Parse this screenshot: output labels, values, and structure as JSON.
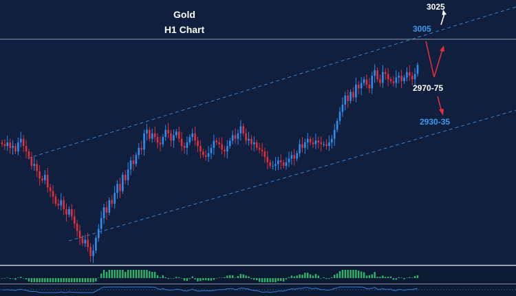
{
  "chart_data": {
    "type": "candlestick",
    "title": "Gold",
    "subtitle": "H1 Chart",
    "colors": {
      "background": "#0f1f3d",
      "bull": "#2f8df0",
      "bear": "#e0303c",
      "channel": "#3c8fe0",
      "hline": "#b8c2d0",
      "title_text": "#ffffff",
      "target_blue": "#3c9cf0",
      "target_white": "#ffffff",
      "arrow_red": "#e0303c",
      "arrow_white": "#ffffff",
      "histogram": "#2fb56a"
    },
    "ylim": [
      2895,
      3042
    ],
    "resistance_level": 3005,
    "closes": [
      2962,
      2961,
      2963,
      2960,
      2961,
      2958,
      2963,
      2965,
      2961,
      2958,
      2955,
      2950,
      2951,
      2947,
      2943,
      2942,
      2945,
      2938,
      2936,
      2933,
      2929,
      2928,
      2931,
      2926,
      2923,
      2926,
      2922,
      2918,
      2914,
      2910,
      2907,
      2909,
      2905,
      2900,
      2903,
      2910,
      2915,
      2921,
      2927,
      2924,
      2931,
      2929,
      2935,
      2940,
      2936,
      2945,
      2942,
      2948,
      2953,
      2951,
      2956,
      2960,
      2959,
      2968,
      2970,
      2965,
      2968,
      2966,
      2963,
      2962,
      2966,
      2970,
      2968,
      2964,
      2967,
      2969,
      2965,
      2961,
      2960,
      2963,
      2966,
      2968,
      2964,
      2961,
      2958,
      2956,
      2955,
      2957,
      2960,
      2964,
      2963,
      2962,
      2959,
      2958,
      2961,
      2964,
      2967,
      2965,
      2968,
      2972,
      2968,
      2964,
      2965,
      2962,
      2963,
      2960,
      2959,
      2958,
      2955,
      2952,
      2950,
      2950,
      2951,
      2953,
      2952,
      2950,
      2952,
      2954,
      2956,
      2954,
      2957,
      2962,
      2960,
      2963,
      2965,
      2963,
      2962,
      2964,
      2963,
      2962,
      2962,
      2961,
      2963,
      2965,
      2970,
      2975,
      2980,
      2984,
      2989,
      2986,
      2991,
      2988,
      2995,
      2993,
      2996,
      2998,
      2995,
      2993,
      3000,
      3003,
      2998,
      2996,
      3002,
      3001,
      2998,
      2997,
      2996,
      2999,
      3000,
      2997,
      2999,
      3002,
      3000,
      2998,
      3001,
      3006
    ]
  }
}
